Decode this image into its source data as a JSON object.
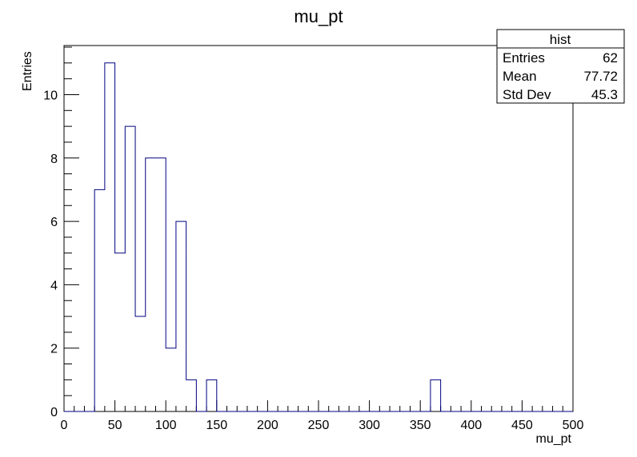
{
  "chart_data": {
    "type": "bar",
    "title": "mu_pt",
    "xlabel": "mu_pt",
    "ylabel": "Entries",
    "xlim": [
      0,
      500
    ],
    "ylim": [
      0,
      11.55
    ],
    "bin_width": 10,
    "bins": [
      {
        "x": 30,
        "value": 7
      },
      {
        "x": 40,
        "value": 11
      },
      {
        "x": 50,
        "value": 5
      },
      {
        "x": 60,
        "value": 9
      },
      {
        "x": 70,
        "value": 3
      },
      {
        "x": 80,
        "value": 8
      },
      {
        "x": 90,
        "value": 8
      },
      {
        "x": 100,
        "value": 2
      },
      {
        "x": 110,
        "value": 6
      },
      {
        "x": 120,
        "value": 1
      },
      {
        "x": 140,
        "value": 1
      },
      {
        "x": 360,
        "value": 1
      }
    ],
    "x_ticks": [
      "0",
      "50",
      "100",
      "150",
      "200",
      "250",
      "300",
      "350",
      "400",
      "450",
      "500"
    ],
    "y_ticks": [
      "0",
      "2",
      "4",
      "6",
      "8",
      "10"
    ],
    "grid": false,
    "legend": "none",
    "line_color": "#000080",
    "stats_box": {
      "title": "hist",
      "rows": [
        {
          "label": "Entries",
          "value": "62"
        },
        {
          "label": "Mean",
          "value": "77.72"
        },
        {
          "label": "Std Dev",
          "value": "45.3"
        }
      ]
    }
  }
}
